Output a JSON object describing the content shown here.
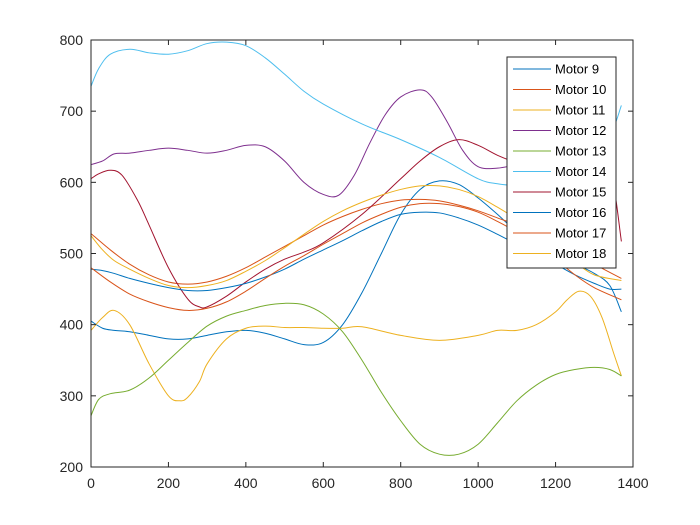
{
  "chart_data": {
    "type": "line",
    "title": "",
    "xlabel": "",
    "ylabel": "",
    "xlim": [
      0,
      1400
    ],
    "ylim": [
      200,
      800
    ],
    "xticks": [
      0,
      200,
      400,
      600,
      800,
      1000,
      1200,
      1400
    ],
    "yticks": [
      200,
      300,
      400,
      500,
      600,
      700,
      800
    ],
    "grid": false,
    "legend_position": "top-right",
    "series": [
      {
        "name": "Motor 9",
        "color": "#0072BD",
        "x": [
          0,
          30,
          60,
          100,
          150,
          200,
          250,
          300,
          350,
          400,
          450,
          500,
          550,
          600,
          650,
          700,
          750,
          800,
          850,
          900,
          950,
          1000,
          1050,
          1100,
          1150,
          1200,
          1250,
          1300,
          1340,
          1370
        ],
        "y": [
          405,
          395,
          392,
          390,
          385,
          380,
          380,
          385,
          390,
          392,
          388,
          380,
          372,
          375,
          400,
          445,
          500,
          555,
          590,
          602,
          597,
          578,
          555,
          530,
          510,
          495,
          485,
          472,
          455,
          418
        ]
      },
      {
        "name": "Motor 10",
        "color": "#D95319",
        "x": [
          0,
          50,
          100,
          150,
          200,
          250,
          300,
          350,
          400,
          450,
          500,
          550,
          600,
          650,
          700,
          750,
          800,
          850,
          900,
          950,
          1000,
          1050,
          1100,
          1150,
          1200,
          1250,
          1300,
          1370
        ],
        "y": [
          528,
          505,
          485,
          470,
          460,
          457,
          460,
          468,
          480,
          495,
          510,
          525,
          540,
          552,
          562,
          570,
          575,
          576,
          574,
          568,
          560,
          550,
          540,
          528,
          515,
          500,
          485,
          465
        ]
      },
      {
        "name": "Motor 11",
        "color": "#EDB120",
        "x": [
          0,
          30,
          60,
          100,
          150,
          200,
          230,
          250,
          280,
          300,
          350,
          400,
          450,
          500,
          550,
          600,
          650,
          700,
          800,
          900,
          1000,
          1050,
          1100,
          1150,
          1200,
          1230,
          1260,
          1290,
          1320,
          1350,
          1370
        ],
        "y": [
          392,
          410,
          420,
          400,
          345,
          300,
          293,
          298,
          320,
          345,
          380,
          395,
          398,
          396,
          396,
          395,
          395,
          397,
          385,
          378,
          385,
          392,
          392,
          400,
          418,
          435,
          447,
          440,
          410,
          360,
          328
        ]
      },
      {
        "name": "Motor 12",
        "color": "#7E2F8E",
        "x": [
          0,
          30,
          60,
          100,
          150,
          200,
          250,
          300,
          350,
          400,
          450,
          500,
          550,
          600,
          640,
          680,
          720,
          760,
          800,
          850,
          880,
          920,
          960,
          1000,
          1050,
          1100,
          1150
        ],
        "y": [
          625,
          630,
          640,
          641,
          645,
          648,
          645,
          641,
          645,
          652,
          650,
          630,
          600,
          583,
          582,
          610,
          655,
          695,
          720,
          730,
          720,
          685,
          645,
          622,
          620,
          625,
          630
        ]
      },
      {
        "name": "Motor 13",
        "color": "#77AC30",
        "x": [
          0,
          20,
          50,
          100,
          150,
          200,
          250,
          300,
          350,
          400,
          450,
          500,
          550,
          600,
          650,
          700,
          750,
          800,
          850,
          900,
          950,
          1000,
          1050,
          1100,
          1150,
          1200,
          1250,
          1300,
          1340,
          1370
        ],
        "y": [
          272,
          295,
          303,
          308,
          325,
          350,
          375,
          398,
          412,
          420,
          427,
          430,
          428,
          415,
          390,
          350,
          305,
          265,
          232,
          218,
          218,
          232,
          262,
          293,
          315,
          330,
          337,
          340,
          337,
          328
        ]
      },
      {
        "name": "Motor 14",
        "color": "#4DBEEE",
        "x": [
          0,
          20,
          50,
          100,
          150,
          200,
          250,
          300,
          350,
          400,
          450,
          500,
          550,
          600,
          700,
          800,
          900,
          1000,
          1050,
          1100,
          1150,
          1200,
          1250,
          1300,
          1340,
          1370
        ],
        "y": [
          735,
          760,
          780,
          787,
          782,
          780,
          785,
          795,
          797,
          792,
          775,
          752,
          728,
          710,
          682,
          660,
          635,
          605,
          598,
          595,
          592,
          580,
          620,
          655,
          665,
          708
        ]
      },
      {
        "name": "Motor 15",
        "color": "#A2142F",
        "x": [
          0,
          20,
          50,
          80,
          120,
          150,
          200,
          250,
          280,
          300,
          350,
          400,
          450,
          500,
          550,
          600,
          700,
          800,
          850,
          900,
          950,
          1000,
          1050,
          1100,
          1150,
          1200,
          1250,
          1300,
          1340,
          1370
        ],
        "y": [
          605,
          612,
          617,
          610,
          575,
          540,
          480,
          436,
          425,
          425,
          440,
          460,
          478,
          492,
          502,
          515,
          555,
          605,
          630,
          650,
          660,
          652,
          638,
          628,
          625,
          630,
          635,
          640,
          625,
          517
        ]
      },
      {
        "name": "Motor 16",
        "color": "#0072BD",
        "x": [
          0,
          30,
          60,
          100,
          150,
          200,
          250,
          300,
          350,
          400,
          450,
          500,
          550,
          600,
          650,
          700,
          750,
          800,
          850,
          900,
          950,
          1000,
          1050,
          1100,
          1150,
          1200,
          1250,
          1300,
          1340,
          1370
        ],
        "y": [
          478,
          476,
          472,
          465,
          458,
          452,
          448,
          448,
          452,
          458,
          467,
          478,
          492,
          505,
          518,
          532,
          545,
          555,
          558,
          557,
          550,
          540,
          527,
          513,
          500,
          485,
          470,
          458,
          450,
          450
        ]
      },
      {
        "name": "Motor 17",
        "color": "#D95319",
        "x": [
          0,
          50,
          100,
          150,
          200,
          250,
          300,
          350,
          400,
          450,
          500,
          550,
          600,
          650,
          700,
          750,
          800,
          850,
          900,
          950,
          1000,
          1050,
          1100,
          1150,
          1200,
          1250,
          1300,
          1370
        ],
        "y": [
          480,
          460,
          443,
          432,
          424,
          420,
          423,
          432,
          447,
          465,
          482,
          497,
          513,
          528,
          543,
          555,
          565,
          570,
          570,
          566,
          558,
          545,
          530,
          512,
          492,
          470,
          452,
          435
        ]
      },
      {
        "name": "Motor 18",
        "color": "#EDB120",
        "x": [
          0,
          30,
          60,
          100,
          150,
          200,
          250,
          300,
          350,
          400,
          450,
          500,
          550,
          600,
          650,
          700,
          750,
          800,
          850,
          900,
          950,
          1000,
          1050,
          1100,
          1150,
          1200,
          1250,
          1300,
          1370
        ],
        "y": [
          525,
          505,
          490,
          478,
          465,
          455,
          452,
          455,
          462,
          475,
          490,
          508,
          527,
          545,
          560,
          572,
          582,
          590,
          595,
          595,
          590,
          580,
          565,
          548,
          528,
          508,
          488,
          470,
          462
        ]
      }
    ]
  }
}
